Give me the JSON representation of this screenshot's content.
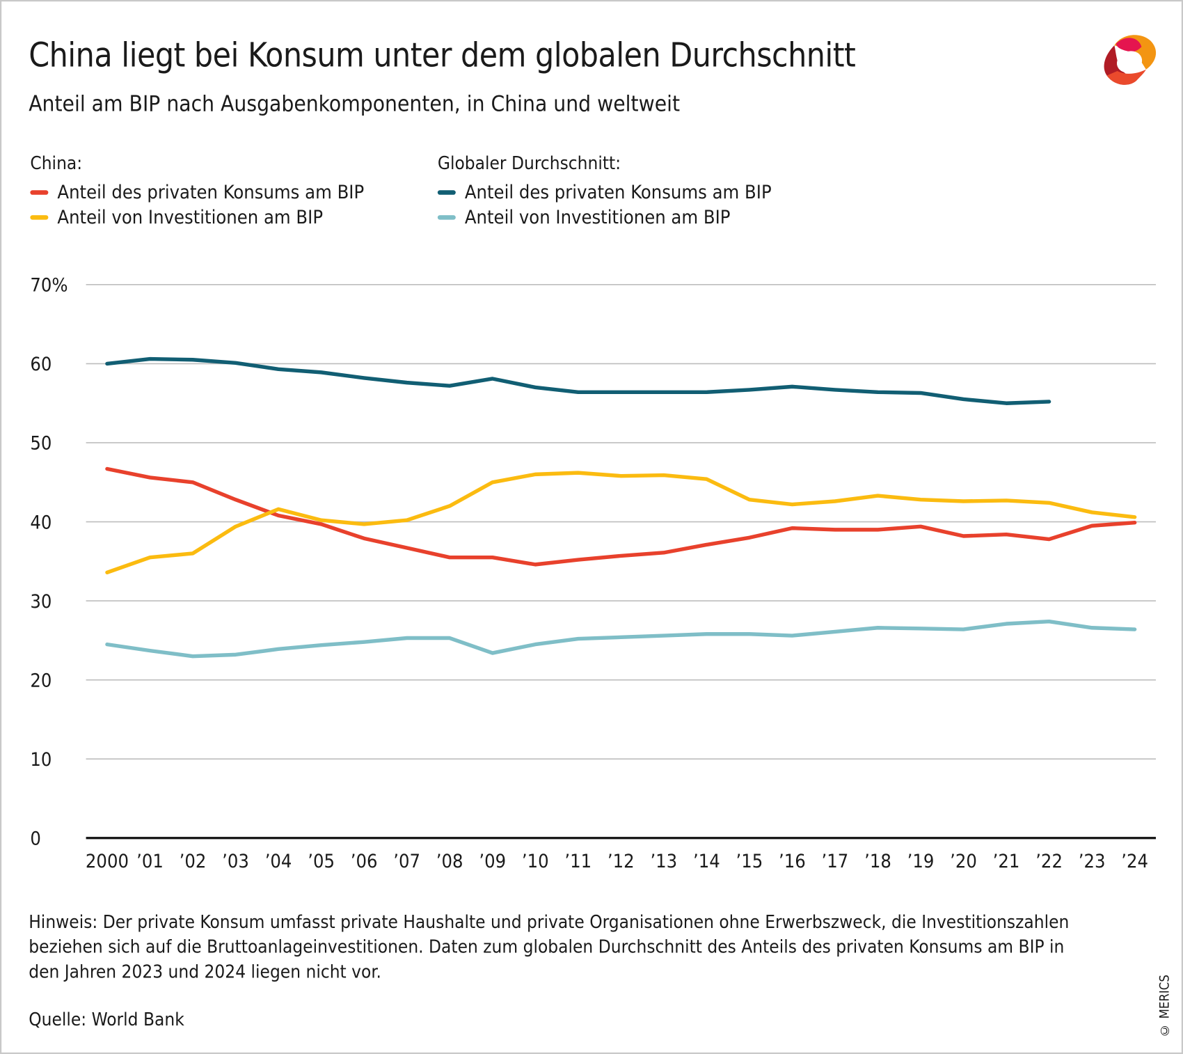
{
  "title": "China liegt bei Konsum unter dem globalen Durchschnitt",
  "subtitle": "Anteil am BIP nach Ausgabenkomponenten, in China und weltweit",
  "legend": {
    "group1": "China:",
    "group2": "Globaler Durchschnitt:",
    "items": [
      {
        "label": "Anteil des privaten Konsums am BIP",
        "color": "#e8412c"
      },
      {
        "label": "Anteil von Investitionen am BIP",
        "color": "#fbbb10"
      },
      {
        "label": "Anteil des privaten Konsums am BIP",
        "color": "#115e73"
      },
      {
        "label": "Anteil von Investitionen am BIP",
        "color": "#7fbec7"
      }
    ]
  },
  "note": "Hinweis: Der private Konsum umfasst private Haushalte und private Organisationen ohne Erwerbszweck, die Investitionszahlen beziehen sich auf die Bruttoanlageinvestitionen. Daten zum globalen Durchschnitt des Anteils des privaten Konsums am BIP in den Jahren 2023 und 2024 liegen nicht vor.",
  "source": "Quelle: World Bank",
  "copyright": "© MERICS",
  "logo": "MERICS",
  "chart_data": {
    "type": "line",
    "x": [
      2000,
      2001,
      2002,
      2003,
      2004,
      2005,
      2006,
      2007,
      2008,
      2009,
      2010,
      2011,
      2012,
      2013,
      2014,
      2015,
      2016,
      2017,
      2018,
      2019,
      2020,
      2021,
      2022,
      2023,
      2024
    ],
    "x_tick_labels": [
      "2000",
      "’01",
      "’02",
      "’03",
      "’04",
      "’05",
      "’06",
      "’07",
      "’08",
      "’09",
      "’10",
      "’11",
      "’12",
      "’13",
      "’14",
      "’15",
      "’16",
      "’17",
      "’18",
      "’19",
      "’20",
      "’21",
      "’22",
      "’23",
      "’24"
    ],
    "y_ticks": [
      0,
      10,
      20,
      30,
      40,
      50,
      60,
      70
    ],
    "y_tick_labels": [
      "0",
      "10",
      "20",
      "30",
      "40",
      "50",
      "60",
      "70%"
    ],
    "ylim": [
      0,
      70
    ],
    "grid": true,
    "series": [
      {
        "name": "China: Anteil des privaten Konsums am BIP",
        "color": "#e8412c",
        "values": [
          46.7,
          45.6,
          45.0,
          42.8,
          40.8,
          39.7,
          37.9,
          36.7,
          35.5,
          35.5,
          34.6,
          35.2,
          35.7,
          36.1,
          37.1,
          38.0,
          39.2,
          39.0,
          39.0,
          39.4,
          38.2,
          38.4,
          37.8,
          39.5,
          39.9
        ]
      },
      {
        "name": "China: Anteil von Investitionen am BIP",
        "color": "#fbbb10",
        "values": [
          33.6,
          35.5,
          36.0,
          39.4,
          41.6,
          40.2,
          39.7,
          40.2,
          42.0,
          45.0,
          46.0,
          46.2,
          45.8,
          45.9,
          45.4,
          42.8,
          42.2,
          42.6,
          43.3,
          42.8,
          42.6,
          42.7,
          42.4,
          41.2,
          40.6
        ]
      },
      {
        "name": "Globaler Durchschnitt: Anteil des privaten Konsums am BIP",
        "color": "#115e73",
        "values": [
          60.0,
          60.6,
          60.5,
          60.1,
          59.3,
          58.9,
          58.2,
          57.6,
          57.2,
          58.1,
          57.0,
          56.4,
          56.4,
          56.4,
          56.4,
          56.7,
          57.1,
          56.7,
          56.4,
          56.3,
          55.5,
          55.0,
          55.2,
          null,
          null
        ]
      },
      {
        "name": "Globaler Durchschnitt: Anteil von Investitionen am BIP",
        "color": "#7fbec7",
        "values": [
          24.5,
          23.7,
          23.0,
          23.2,
          23.9,
          24.4,
          24.8,
          25.3,
          25.3,
          23.4,
          24.5,
          25.2,
          25.4,
          25.6,
          25.8,
          25.8,
          25.6,
          26.1,
          26.6,
          26.5,
          26.4,
          27.1,
          27.4,
          26.6,
          26.4
        ]
      }
    ]
  }
}
